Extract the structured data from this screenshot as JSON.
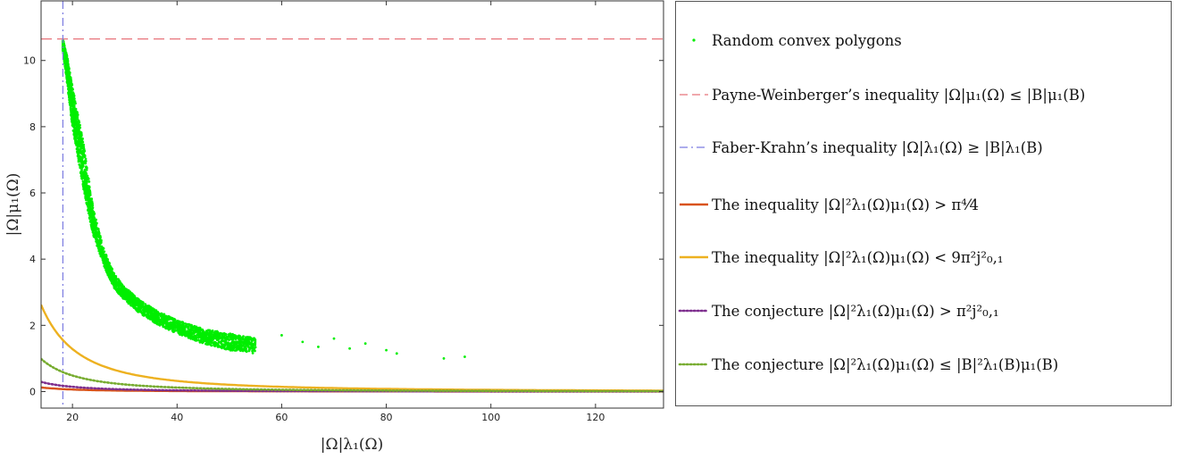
{
  "chart_data": {
    "type": "scatter",
    "xlabel": "|Ω|λ₁(Ω)",
    "ylabel": "|Ω|μ₁(Ω)",
    "xlim": [
      14,
      133
    ],
    "ylim": [
      -0.5,
      11.8
    ],
    "x_ticks": [
      20,
      40,
      60,
      80,
      100,
      120
    ],
    "y_ticks": [
      0,
      2,
      4,
      6,
      8,
      10
    ],
    "grid": false,
    "legend_position": "right-outside",
    "series": [
      {
        "name": "Random convex polygons",
        "style": "points",
        "color": "#00ee00",
        "band_x": [
          18.2,
          19,
          20,
          22,
          24,
          26,
          28,
          30,
          33,
          36,
          40,
          45,
          50,
          55
        ],
        "band_y_low": [
          10.3,
          9.3,
          8.0,
          6.2,
          4.7,
          3.8,
          3.1,
          2.75,
          2.35,
          2.05,
          1.75,
          1.45,
          1.25,
          1.12
        ],
        "band_y_high": [
          10.6,
          10.1,
          9.2,
          7.6,
          5.5,
          4.3,
          3.55,
          3.15,
          2.75,
          2.45,
          2.15,
          1.9,
          1.75,
          1.62
        ],
        "outliers": [
          {
            "x": 60,
            "y": 1.7
          },
          {
            "x": 64,
            "y": 1.5
          },
          {
            "x": 67,
            "y": 1.35
          },
          {
            "x": 70,
            "y": 1.6
          },
          {
            "x": 73,
            "y": 1.3
          },
          {
            "x": 76,
            "y": 1.45
          },
          {
            "x": 80,
            "y": 1.25
          },
          {
            "x": 82,
            "y": 1.15
          },
          {
            "x": 91,
            "y": 1.0
          },
          {
            "x": 95,
            "y": 1.05
          }
        ]
      },
      {
        "name": "Payne-Weinberger's inequality |Ω|μ₁(Ω) ≤ |B|μ₁(B)",
        "style": "dashed",
        "color": "#e8737a",
        "orientation": "horizontal",
        "y": 10.65
      },
      {
        "name": "Faber-Krahn's inequality |Ω|λ₁(Ω) ≥ |B|λ₁(B)",
        "style": "dashdot",
        "color": "#7a7ae0",
        "orientation": "vertical",
        "x": 18.17
      },
      {
        "name": "The inequality |Ω|²λ₁(Ω)μ₁(Ω) > π⁴/4",
        "style": "solid",
        "color": "#d95319",
        "curve_constant": 24.35
      },
      {
        "name": "The inequality |Ω|²λ₁(Ω)μ₁(Ω) < 9π²j²₀,₁",
        "style": "solid",
        "color": "#edb120",
        "curve_constant": 513.7
      },
      {
        "name": "The conjecture |Ω|²λ₁(Ω)μ₁(Ω) > π²j²₀,₁",
        "style": "dotted",
        "color": "#7e2f8e",
        "curve_constant": 57.08
      },
      {
        "name": "The conjecture |Ω|²λ₁(Ω)μ₁(Ω) ≤ |B|²λ₁(B)μ₁(B)",
        "style": "dotted",
        "color": "#77ac30",
        "curve_constant": 193.5
      }
    ]
  },
  "legend": {
    "items": [
      {
        "key": "points",
        "color": "#00ee00",
        "label": "Random convex polygons"
      },
      {
        "key": "dashed",
        "color": "#e8737a",
        "label": "Payne-Weinberger’s inequality |Ω|μ₁(Ω) ≤ |B|μ₁(B)"
      },
      {
        "key": "dashdot",
        "color": "#7a7ae0",
        "label": "Faber-Krahn’s inequality |Ω|λ₁(Ω) ≥ |B|λ₁(B)"
      },
      {
        "key": "solid",
        "color": "#d95319",
        "label": "The inequality |Ω|²λ₁(Ω)μ₁(Ω) > π⁴⁄4"
      },
      {
        "key": "solid",
        "color": "#edb120",
        "label": "The inequality |Ω|²λ₁(Ω)μ₁(Ω) < 9π²j²₀,₁"
      },
      {
        "key": "dotted",
        "color": "#7e2f8e",
        "label": "The conjecture |Ω|²λ₁(Ω)μ₁(Ω) > π²j²₀,₁"
      },
      {
        "key": "dotted",
        "color": "#77ac30",
        "label": "The conjecture |Ω|²λ₁(Ω)μ₁(Ω) ≤ |B|²λ₁(B)μ₁(B)"
      }
    ]
  }
}
